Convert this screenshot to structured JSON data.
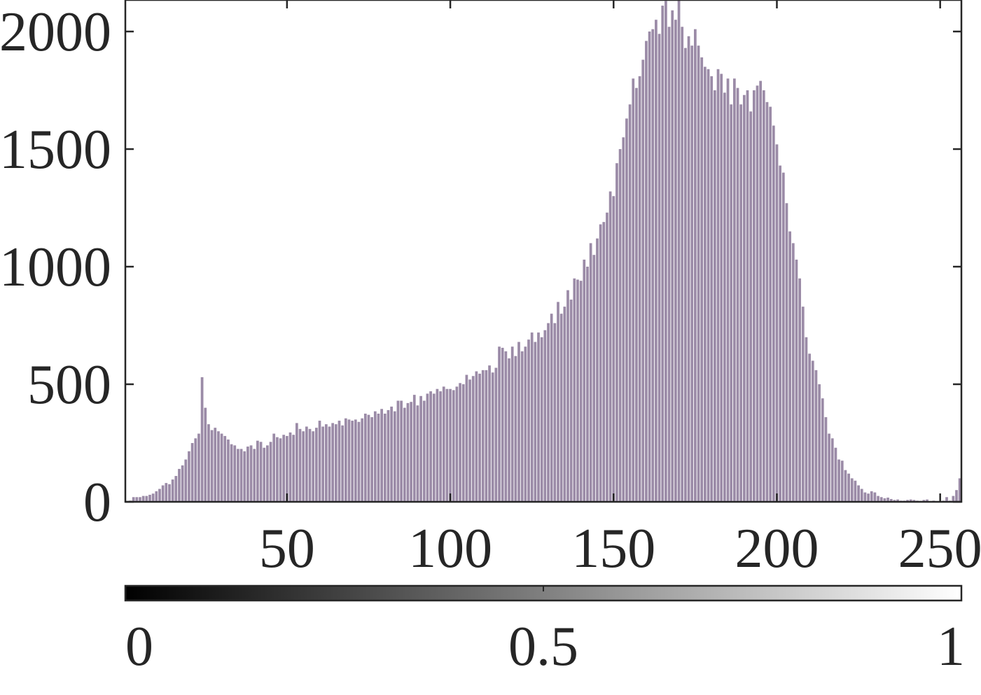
{
  "chart_data": {
    "type": "histogram",
    "x": [
      1,
      2,
      3,
      4,
      5,
      6,
      7,
      8,
      9,
      10,
      11,
      12,
      13,
      14,
      15,
      16,
      17,
      18,
      19,
      20,
      21,
      22,
      23,
      24,
      25,
      26,
      27,
      28,
      29,
      30,
      31,
      32,
      33,
      34,
      35,
      36,
      37,
      38,
      39,
      40,
      41,
      42,
      43,
      44,
      45,
      46,
      47,
      48,
      49,
      50,
      51,
      52,
      53,
      54,
      55,
      56,
      57,
      58,
      59,
      60,
      61,
      62,
      63,
      64,
      65,
      66,
      67,
      68,
      69,
      70,
      71,
      72,
      73,
      74,
      75,
      76,
      77,
      78,
      79,
      80,
      81,
      82,
      83,
      84,
      85,
      86,
      87,
      88,
      89,
      90,
      91,
      92,
      93,
      94,
      95,
      96,
      97,
      98,
      99,
      100,
      101,
      102,
      103,
      104,
      105,
      106,
      107,
      108,
      109,
      110,
      111,
      112,
      113,
      114,
      115,
      116,
      117,
      118,
      119,
      120,
      121,
      122,
      123,
      124,
      125,
      126,
      127,
      128,
      129,
      130,
      131,
      132,
      133,
      134,
      135,
      136,
      137,
      138,
      139,
      140,
      141,
      142,
      143,
      144,
      145,
      146,
      147,
      148,
      149,
      150,
      151,
      152,
      153,
      154,
      155,
      156,
      157,
      158,
      159,
      160,
      161,
      162,
      163,
      164,
      165,
      166,
      167,
      168,
      169,
      170,
      171,
      172,
      173,
      174,
      175,
      176,
      177,
      178,
      179,
      180,
      181,
      182,
      183,
      184,
      185,
      186,
      187,
      188,
      189,
      190,
      191,
      192,
      193,
      194,
      195,
      196,
      197,
      198,
      199,
      200,
      201,
      202,
      203,
      204,
      205,
      206,
      207,
      208,
      209,
      210,
      211,
      212,
      213,
      214,
      215,
      216,
      217,
      218,
      219,
      220,
      221,
      222,
      223,
      224,
      225,
      226,
      227,
      228,
      229,
      230,
      231,
      232,
      233,
      234,
      235,
      236,
      237,
      238,
      239,
      240,
      241,
      242,
      243,
      244,
      245,
      246,
      247,
      248,
      249,
      250,
      251,
      252,
      253,
      254,
      255,
      256
    ],
    "values": [
      3,
      5,
      20,
      20,
      20,
      25,
      25,
      30,
      35,
      45,
      55,
      70,
      80,
      75,
      95,
      110,
      140,
      155,
      180,
      215,
      250,
      270,
      290,
      530,
      400,
      330,
      305,
      315,
      300,
      290,
      280,
      265,
      245,
      240,
      225,
      225,
      215,
      235,
      240,
      225,
      260,
      255,
      230,
      240,
      255,
      290,
      275,
      270,
      285,
      280,
      295,
      285,
      335,
      310,
      300,
      320,
      310,
      300,
      315,
      345,
      320,
      330,
      320,
      335,
      330,
      345,
      325,
      355,
      350,
      345,
      350,
      340,
      355,
      375,
      370,
      360,
      385,
      375,
      395,
      375,
      390,
      405,
      385,
      430,
      430,
      400,
      420,
      425,
      455,
      410,
      450,
      430,
      460,
      470,
      460,
      480,
      470,
      490,
      480,
      480,
      475,
      490,
      505,
      500,
      540,
      520,
      535,
      555,
      545,
      560,
      560,
      580,
      550,
      570,
      660,
      655,
      640,
      610,
      660,
      620,
      680,
      640,
      660,
      690,
      720,
      680,
      720,
      700,
      730,
      760,
      800,
      760,
      850,
      800,
      830,
      900,
      860,
      950,
      945,
      940,
      1030,
      1000,
      1100,
      1050,
      1120,
      1180,
      1190,
      1230,
      1320,
      1300,
      1440,
      1500,
      1550,
      1630,
      1690,
      1800,
      1760,
      1810,
      1880,
      1960,
      2000,
      2010,
      2050,
      1990,
      2110,
      2130,
      2020,
      2090,
      2050,
      2200,
      2020,
      1930,
      1980,
      1940,
      2010,
      1940,
      1890,
      1850,
      1840,
      1810,
      1750,
      1840,
      1820,
      1740,
      1800,
      1690,
      1800,
      1760,
      1690,
      1730,
      1750,
      1660,
      1750,
      1770,
      1790,
      1750,
      1700,
      1680,
      1600,
      1520,
      1430,
      1400,
      1270,
      1150,
      1100,
      1030,
      950,
      830,
      700,
      630,
      600,
      560,
      500,
      440,
      360,
      290,
      270,
      230,
      180,
      175,
      135,
      120,
      100,
      90,
      70,
      55,
      40,
      35,
      45,
      40,
      25,
      20,
      15,
      18,
      12,
      8,
      10,
      5,
      5,
      8,
      10,
      8,
      5,
      4,
      8,
      10,
      3,
      5,
      3,
      2,
      5,
      20,
      5,
      25,
      50,
      100
    ],
    "color": "#9b8ba7",
    "xlim": [
      0.5,
      256.5
    ],
    "xticks": [
      50,
      100,
      150,
      200,
      250
    ],
    "ylim": [
      0,
      2134
    ],
    "yticks": [
      0,
      500,
      1000,
      1500,
      2000
    ],
    "colorbar": {
      "lim": [
        0,
        1
      ],
      "ticks": [
        0,
        0.5,
        1
      ]
    }
  }
}
